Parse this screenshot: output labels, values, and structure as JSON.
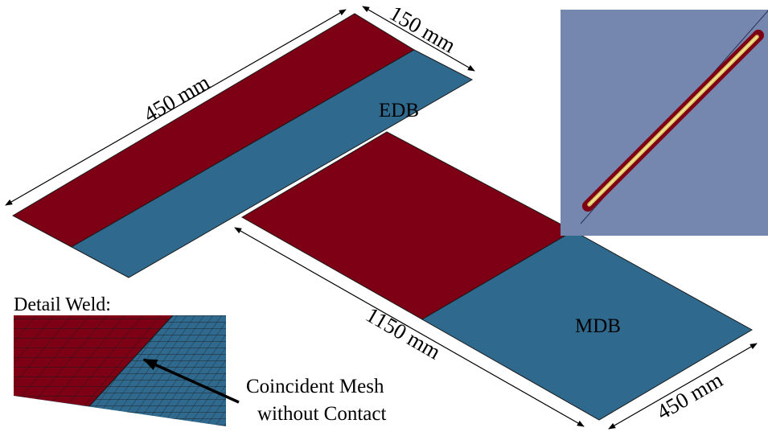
{
  "colors": {
    "edb_weld_red": "#7d0014",
    "db_blue": "#2f6a8e",
    "simulation_background": "#7587ae",
    "edge_line": "#1a1a1a",
    "weld_core": "#d8c25a"
  },
  "edb_panel": {
    "label": "EDB",
    "length_dimension": "450 mm",
    "width_dimension": "150 mm"
  },
  "mdb_panel": {
    "label": "MDB",
    "length_dimension": "1150 mm",
    "width_dimension": "450 mm"
  },
  "detail_inset": {
    "title": "Detail Weld:",
    "annotation_line1": "Coincident Mesh",
    "annotation_line2": "without Contact"
  },
  "simulation_inset": {
    "icon": "weld-seam-simulation-view"
  }
}
